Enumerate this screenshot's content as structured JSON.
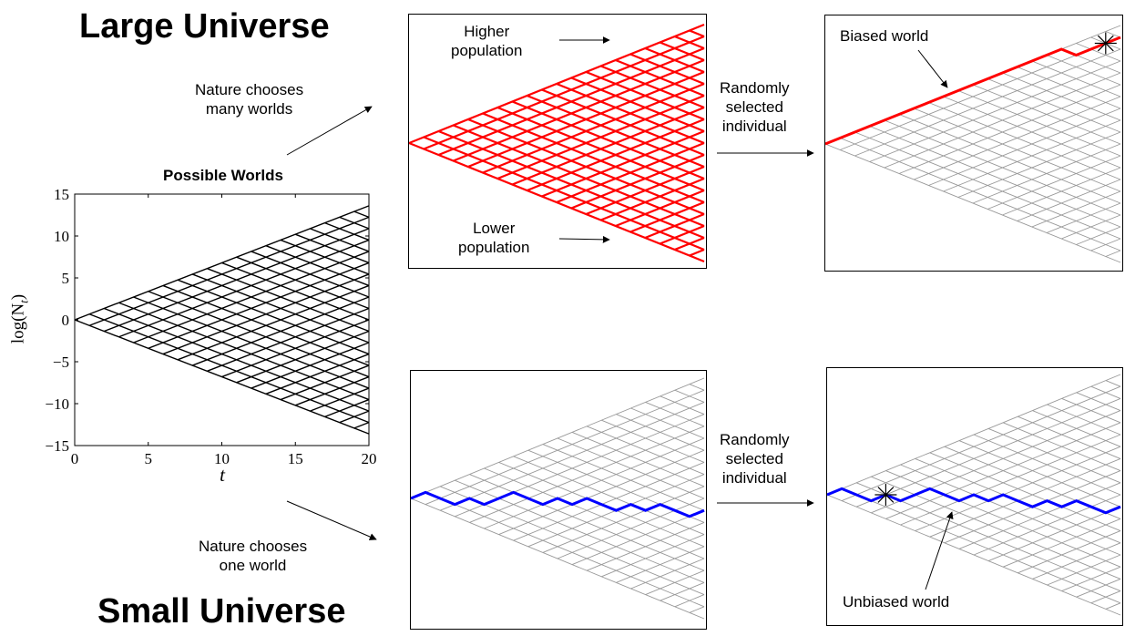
{
  "titles": {
    "large": "Large Universe",
    "small": "Small Universe"
  },
  "main_chart": {
    "title": "Possible Worlds",
    "xlabel": "t",
    "ylabel": "log(N_t)",
    "ylabel_base": "log(N",
    "ylabel_sub": "t",
    "ylabel_close": ")",
    "xlim": [
      0,
      20
    ],
    "ylim": [
      -15,
      15
    ],
    "xticks": [
      "0",
      "5",
      "10",
      "15",
      "20"
    ],
    "yticks": [
      "15",
      "10",
      "5",
      "0",
      "−5",
      "−10",
      "−15"
    ]
  },
  "annotations": {
    "nature_many": [
      "Nature chooses",
      "many worlds"
    ],
    "nature_one": [
      "Nature chooses",
      "one world"
    ],
    "random_top": [
      "Randomly",
      "selected",
      "individual"
    ],
    "random_bottom": [
      "Randomly",
      "selected",
      "individual"
    ],
    "higher_population": [
      "Higher",
      "population"
    ],
    "lower_population": [
      "Lower",
      "population"
    ],
    "biased_world": "Biased world",
    "unbiased_world": "Unbiased world"
  },
  "colors": {
    "grid_main": "#000000",
    "grid_all_worlds": "#ff0000",
    "grid_faint": "#999999",
    "biased_path": "#ff0000",
    "unbiased_path": "#0000ff"
  },
  "lattice": {
    "steps": 20,
    "biased_path": [
      1,
      1,
      1,
      1,
      1,
      1,
      1,
      1,
      1,
      1,
      1,
      1,
      1,
      1,
      1,
      1,
      -1,
      1,
      1,
      1
    ],
    "unbiased_path": [
      1,
      -1,
      -1,
      1,
      -1,
      1,
      1,
      -1,
      -1,
      1,
      -1,
      1,
      -1,
      -1,
      1,
      -1,
      1,
      -1,
      -1,
      1
    ],
    "selected_step_top": 19,
    "selected_step_bottom": 4
  }
}
